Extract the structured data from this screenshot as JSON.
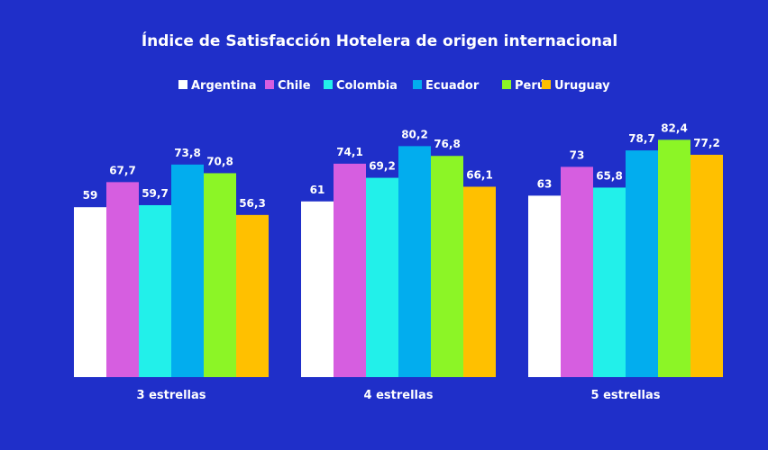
{
  "chart_data": {
    "type": "bar",
    "title": "Índice de Satisfacción Hotelera de origen internacional",
    "categories": [
      "3 estrellas",
      "4 estrellas",
      "5 estrellas"
    ],
    "series": [
      {
        "name": "Argentina",
        "color": "#ffffff",
        "values": [
          59,
          61,
          63
        ],
        "labels": [
          "59",
          "61",
          "63"
        ]
      },
      {
        "name": "Chile",
        "color": "#d65ee0",
        "values": [
          67.7,
          74.1,
          73
        ],
        "labels": [
          "67,7",
          "74,1",
          "73"
        ]
      },
      {
        "name": "Colombia",
        "color": "#22f0ea",
        "values": [
          59.7,
          69.2,
          65.8
        ],
        "labels": [
          "59,7",
          "69,2",
          "65,8"
        ]
      },
      {
        "name": "Ecuador",
        "color": "#02adee",
        "values": [
          73.8,
          80.2,
          78.7
        ],
        "labels": [
          "73,8",
          "80,2",
          "78,7"
        ]
      },
      {
        "name": "Perú",
        "color": "#8cf526",
        "values": [
          70.8,
          76.8,
          82.4
        ],
        "labels": [
          "70,8",
          "76,8",
          "82,4"
        ]
      },
      {
        "name": "Uruguay",
        "color": "#ffc000",
        "values": [
          56.3,
          66.1,
          77.2
        ],
        "labels": [
          "56,3",
          "66,1",
          "77,2"
        ]
      }
    ],
    "ylim": [
      0,
      100
    ],
    "legend_position": "top",
    "grid": false,
    "background": "#1f2fc9"
  }
}
